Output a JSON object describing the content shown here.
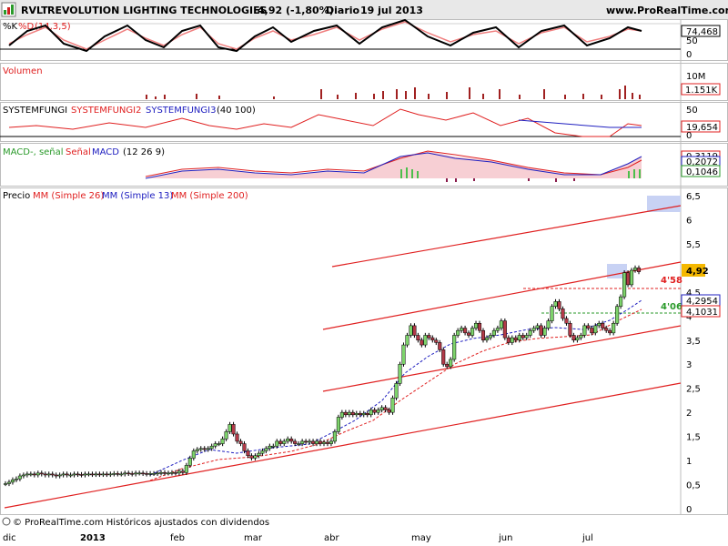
{
  "header": {
    "ticker": "RVLT",
    "company": "REVOLUTION LIGHTING TECHNOLOGIES",
    "price_change": "4,92 (-1,80%)",
    "period": "Diario",
    "date": "19 jul 2013",
    "site": "www.ProRealTime.com"
  },
  "footer": "© ProRealTime.com Históricos ajustados con dividendos",
  "colors": {
    "bull": "#7dd36b",
    "bear": "#b23a48",
    "red": "#e02020",
    "blue": "#2020c0",
    "volume": "#a02020",
    "panel_border": "#bdbdbd",
    "hdr_bg": "#e8e8e8"
  },
  "panels": {
    "stoch": {
      "label_a": "%K",
      "label_b": "%D",
      "params": "(14,3,5)",
      "value_label": "74,468",
      "axis_labels": [
        "50",
        "0"
      ]
    },
    "volume": {
      "label": "Volumen",
      "axis_labels": [
        "10M",
        "0"
      ],
      "value_label": "1.151K"
    },
    "fungi": {
      "label_a": "SYSTEMFUNGI",
      "label_b": "SYSTEMFUNGI2",
      "label_c": "SYSTEMFUNGI3",
      "params": "(40 100)",
      "axis_labels": [
        "50",
        "0"
      ],
      "value_red": "19,654",
      "value_black": "0"
    },
    "macd": {
      "label_a": "MACD-, señal",
      "label_b": "Señal",
      "label_c": "MACD",
      "params": "(12 26 9)",
      "value_red": "0,3119",
      "value_blue": "0,2072",
      "value_green": "0,1046"
    },
    "price": {
      "label_a": "Precio",
      "label_b": "MM (Simple 26)",
      "label_c": "MM (Simple 13)",
      "label_d": "MM (Simple 200)",
      "price_tag": "4,92",
      "ma_tag_blue": "4,2954",
      "ma_tag_red": "4,1031",
      "level_high": "4'58",
      "level_low": "4'06"
    }
  },
  "chart_data": {
    "type": "candlestick",
    "x_axis_labels": [
      "dic",
      "2013",
      "feb",
      "mar",
      "abr",
      "may",
      "jun",
      "jul"
    ],
    "y_ticks": [
      "6,5",
      "6",
      "5,5",
      "5",
      "4,5",
      "4",
      "3,5",
      "3",
      "2,5",
      "2",
      "1,5",
      "1",
      "0,5",
      "0"
    ],
    "ylim": [
      0,
      6.5
    ],
    "close": [
      0.52,
      0.55,
      0.6,
      0.62,
      0.68,
      0.7,
      0.72,
      0.72,
      0.7,
      0.74,
      0.72,
      0.7,
      0.72,
      0.7,
      0.68,
      0.7,
      0.72,
      0.7,
      0.7,
      0.72,
      0.71,
      0.7,
      0.72,
      0.72,
      0.71,
      0.72,
      0.71,
      0.72,
      0.71,
      0.72,
      0.73,
      0.72,
      0.72,
      0.74,
      0.73,
      0.72,
      0.74,
      0.74,
      0.73,
      0.72,
      0.73,
      0.73,
      0.74,
      0.75,
      0.74,
      0.74,
      0.75,
      0.74,
      0.78,
      0.75,
      0.9,
      1.05,
      1.2,
      1.23,
      1.25,
      1.23,
      1.25,
      1.3,
      1.35,
      1.35,
      1.45,
      1.6,
      1.75,
      1.55,
      1.4,
      1.35,
      1.2,
      1.1,
      1.05,
      1.1,
      1.15,
      1.2,
      1.25,
      1.3,
      1.3,
      1.4,
      1.35,
      1.4,
      1.45,
      1.4,
      1.35,
      1.35,
      1.4,
      1.38,
      1.4,
      1.35,
      1.4,
      1.35,
      1.38,
      1.35,
      1.4,
      1.6,
      1.9,
      2.0,
      1.95,
      2.0,
      1.95,
      1.98,
      1.95,
      1.98,
      1.95,
      2.05,
      2.0,
      2.05,
      2.1,
      2.05,
      2.0,
      2.3,
      2.6,
      3.0,
      3.4,
      3.6,
      3.8,
      3.6,
      3.5,
      3.4,
      3.6,
      3.55,
      3.5,
      3.45,
      3.3,
      3.0,
      2.95,
      3.1,
      3.6,
      3.7,
      3.75,
      3.65,
      3.6,
      3.75,
      3.85,
      3.7,
      3.5,
      3.55,
      3.6,
      3.7,
      3.75,
      3.9,
      3.55,
      3.45,
      3.55,
      3.5,
      3.6,
      3.55,
      3.6,
      3.7,
      3.75,
      3.8,
      3.6,
      3.75,
      3.9,
      4.2,
      4.3,
      4.15,
      3.95,
      3.85,
      3.6,
      3.5,
      3.55,
      3.6,
      3.8,
      3.75,
      3.65,
      3.8,
      3.85,
      3.75,
      3.7,
      3.65,
      3.85,
      4.2,
      4.4,
      4.9,
      4.65,
      4.95,
      5.0,
      4.92
    ]
  }
}
